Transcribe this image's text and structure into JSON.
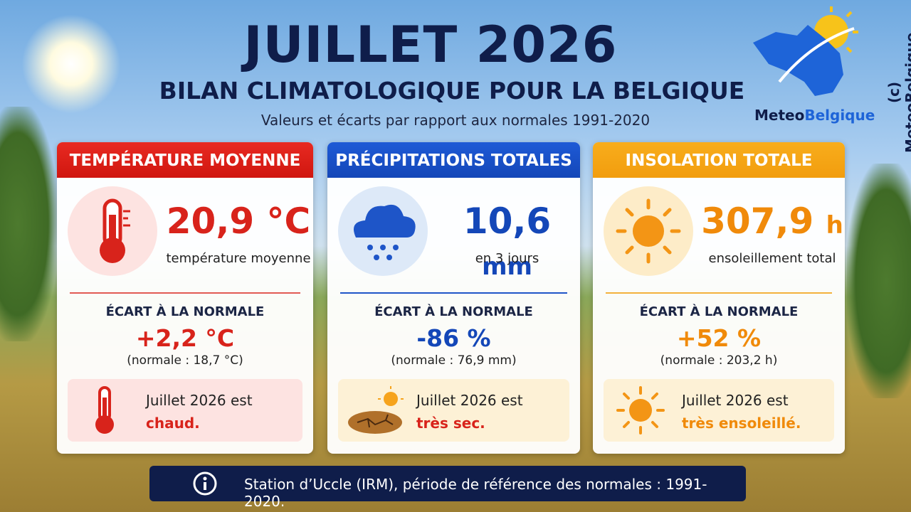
{
  "header": {
    "title": "JUILLET 2026",
    "subtitle": "BILAN CLIMATOLOGIQUE POUR LA BELGIQUE",
    "caption": "Valeurs et écarts par rapport aux normales 1991-2020",
    "logo": {
      "part1": "Meteo",
      "part2": "Belgique"
    },
    "copyright": "(c) MeteoBelgique"
  },
  "cards": [
    {
      "title": "TEMPÉRATURE MOYENNE",
      "value": "20,9",
      "unit": "°C",
      "label": "température moyenne",
      "deviation_title": "ÉCART À LA NORMALE",
      "deviation": "+2,2 °C",
      "normal": "(normale : 18,7 °C)",
      "verdict_intro": "Juillet 2026 est",
      "verdict": "chaud."
    },
    {
      "title": "PRÉCIPITATIONS TOTALES",
      "value": "10,6",
      "unit": "mm",
      "label": "en 3 jours",
      "deviation_title": "ÉCART À LA NORMALE",
      "deviation": "-86 %",
      "normal": "(normale : 76,9 mm)",
      "verdict_intro": "Juillet 2026 est",
      "verdict": "très sec."
    },
    {
      "title": "INSOLATION TOTALE",
      "value": "307,9",
      "unit": "h",
      "label": "ensoleillement total",
      "deviation_title": "ÉCART À LA NORMALE",
      "deviation": "+52 %",
      "normal": "(normale : 203,2 h)",
      "verdict_intro": "Juillet 2026 est",
      "verdict": "très ensoleillé."
    }
  ],
  "footer": {
    "text": "Station d’Uccle (IRM), période de référence des normales : 1991-2020."
  }
}
